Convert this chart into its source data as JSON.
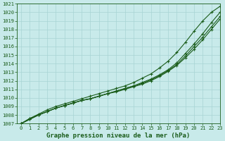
{
  "x": [
    0,
    1,
    2,
    3,
    4,
    5,
    6,
    7,
    8,
    9,
    10,
    11,
    12,
    13,
    14,
    15,
    16,
    17,
    18,
    19,
    20,
    21,
    22,
    23
  ],
  "line1": [
    1007.0,
    1007.6,
    1008.0,
    1008.4,
    1008.8,
    1009.1,
    1009.4,
    1009.7,
    1009.9,
    1010.2,
    1010.5,
    1010.7,
    1011.0,
    1011.3,
    1011.6,
    1012.0,
    1012.5,
    1013.1,
    1013.8,
    1014.7,
    1015.7,
    1016.8,
    1018.0,
    1019.2
  ],
  "line2": [
    1007.0,
    1007.5,
    1008.0,
    1008.4,
    1008.8,
    1009.1,
    1009.4,
    1009.7,
    1009.9,
    1010.2,
    1010.5,
    1010.8,
    1011.1,
    1011.4,
    1011.7,
    1012.1,
    1012.6,
    1013.2,
    1013.9,
    1014.9,
    1016.0,
    1017.1,
    1018.3,
    1019.5
  ],
  "line3": [
    1007.0,
    1007.5,
    1008.0,
    1008.4,
    1008.8,
    1009.1,
    1009.4,
    1009.7,
    1009.9,
    1010.2,
    1010.5,
    1010.8,
    1011.1,
    1011.4,
    1011.8,
    1012.2,
    1012.7,
    1013.3,
    1014.1,
    1015.2,
    1016.3,
    1017.5,
    1018.8,
    1020.0
  ],
  "line4": [
    1007.0,
    1007.6,
    1008.1,
    1008.6,
    1009.0,
    1009.3,
    1009.6,
    1009.9,
    1010.2,
    1010.5,
    1010.8,
    1011.1,
    1011.4,
    1011.8,
    1012.3,
    1012.8,
    1013.5,
    1014.3,
    1015.3,
    1016.5,
    1017.8,
    1019.0,
    1020.0,
    1020.7
  ],
  "ylim": [
    1007,
    1021
  ],
  "xlim": [
    -0.5,
    23
  ],
  "yticks": [
    1007,
    1008,
    1009,
    1010,
    1011,
    1012,
    1013,
    1014,
    1015,
    1016,
    1017,
    1018,
    1019,
    1020,
    1021
  ],
  "xticks": [
    0,
    1,
    2,
    3,
    4,
    5,
    6,
    7,
    8,
    9,
    10,
    11,
    12,
    13,
    14,
    15,
    16,
    17,
    18,
    19,
    20,
    21,
    22,
    23
  ],
  "xlabel": "Graphe pression niveau de la mer (hPa)",
  "line_color": "#1a5c1a",
  "bg_color": "#c8eaea",
  "grid_color": "#a8d4d4",
  "marker": "+",
  "marker_size": 3.5,
  "line_width": 0.8,
  "xlabel_fontsize": 6.5,
  "tick_fontsize": 5.0
}
